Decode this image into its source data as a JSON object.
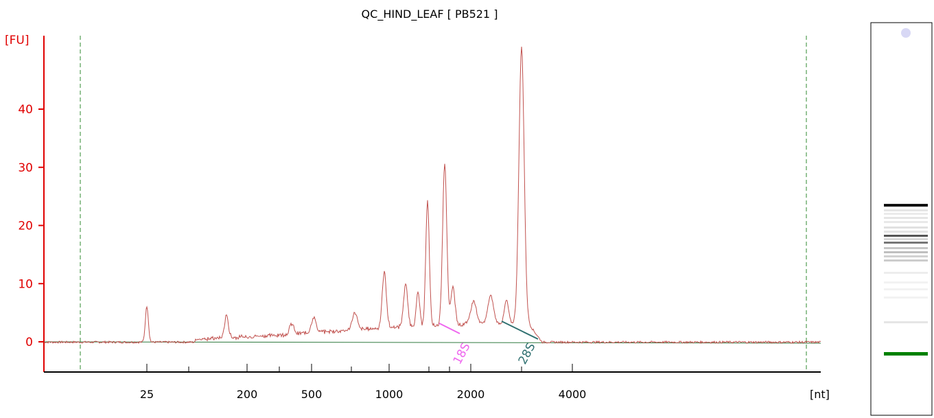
{
  "chart_data": {
    "type": "line",
    "title": "QC_HIND_LEAF  [ PB521 ]",
    "ylabel": "[FU]",
    "xlabel": "[nt]",
    "ylim": [
      -5,
      50
    ],
    "yticks": [
      0,
      10,
      20,
      30,
      40
    ],
    "xticks": [
      "25",
      "200",
      "500",
      "1000",
      "2000",
      "4000"
    ],
    "grid": false,
    "series": [
      {
        "color": "#c0504d",
        "peaks": [
          {
            "x": "25",
            "y": 6.2
          },
          {
            "x": "~150",
            "y": 3.8
          },
          {
            "x": "~400",
            "y": 1.8
          },
          {
            "x": "500",
            "y": 2.6
          },
          {
            "x": "~750",
            "y": 3.0
          },
          {
            "x": "~950",
            "y": 9.5
          },
          {
            "x": "~1150",
            "y": 7.2
          },
          {
            "x": "~1300",
            "y": 5.8
          },
          {
            "x": "~1450",
            "y": 21.3
          },
          {
            "x": "~1700",
            "y": 27.8
          },
          {
            "x": "~1850",
            "y": 6.5
          },
          {
            "x": "~2300",
            "y": 4.8
          },
          {
            "x": "~3000",
            "y": 47.5
          }
        ]
      }
    ],
    "markers": [
      {
        "label": "18S",
        "color": "#ee66ee"
      },
      {
        "label": "28S",
        "color": "#2f7070"
      }
    ],
    "gel": {
      "bands": [
        {
          "color": "#111111"
        },
        {
          "color": "#555555"
        },
        {
          "color": "#777777"
        },
        {
          "color": "#008000"
        }
      ]
    }
  },
  "colors": {
    "axis": "#e00000",
    "trace": "#c0504d",
    "baseline": "#2f7a3f",
    "dashed": "#2f8a2f"
  }
}
